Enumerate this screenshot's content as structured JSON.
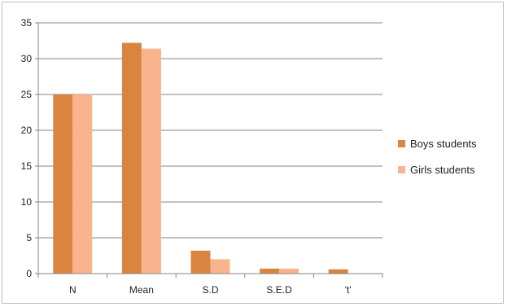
{
  "chart_data": {
    "type": "bar",
    "title": "",
    "xlabel": "",
    "ylabel": "",
    "categories": [
      "N",
      "Mean",
      "S.D",
      "S.E.D",
      "'t'"
    ],
    "series": [
      {
        "name": "Boys students",
        "values": [
          25,
          32.2,
          3.2,
          0.7,
          0.6
        ],
        "color": "#d9853f"
      },
      {
        "name": "Girls students",
        "values": [
          25,
          31.4,
          2.0,
          0.7,
          0
        ],
        "color": "#f9b48e"
      }
    ],
    "ylim": [
      0,
      35
    ],
    "yticks": [
      0,
      5,
      10,
      15,
      20,
      25,
      30,
      35
    ],
    "grid": true,
    "legend": "right"
  }
}
